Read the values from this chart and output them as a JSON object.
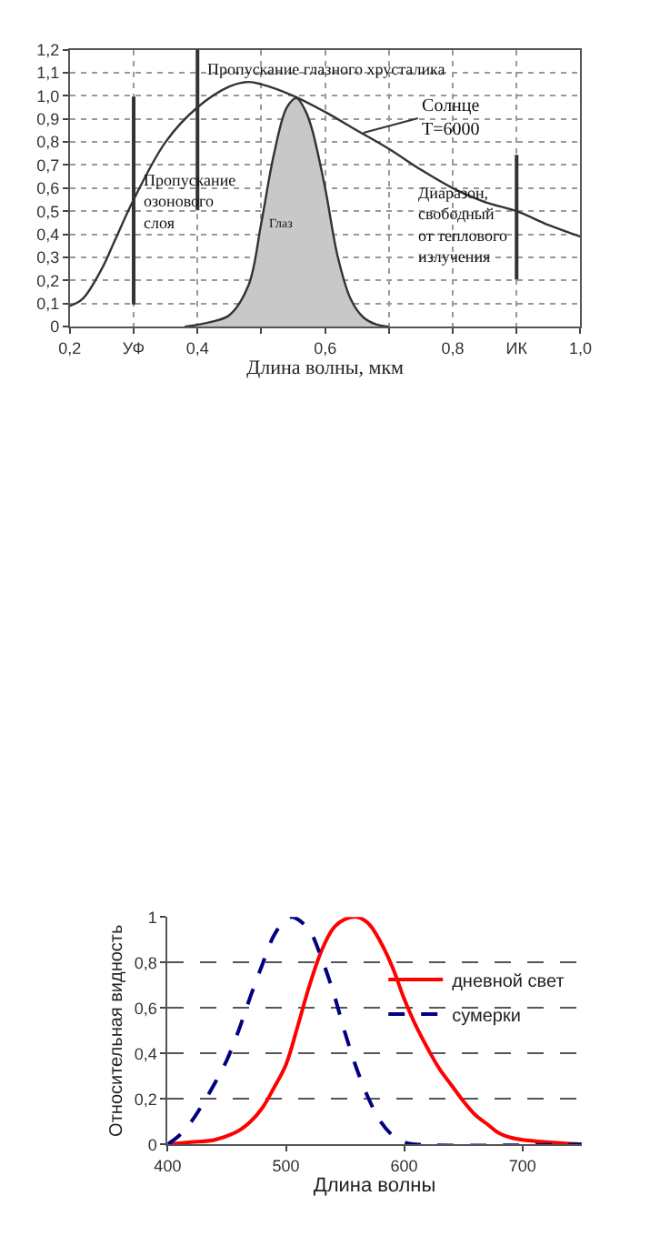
{
  "chart_data": [
    {
      "type": "line",
      "xlabel": "Длина волны, мкм",
      "xlim": [
        0.2,
        1.0
      ],
      "xticks": [
        {
          "value": 0.2,
          "label": "0,2"
        },
        {
          "value": 0.3,
          "label": "УФ"
        },
        {
          "value": 0.4,
          "label": "0,4"
        },
        {
          "value": 0.5,
          "label": null
        },
        {
          "value": 0.6,
          "label": "0,6"
        },
        {
          "value": 0.7,
          "label": null
        },
        {
          "value": 0.8,
          "label": "0,8"
        },
        {
          "value": 0.9,
          "label": "ИК"
        },
        {
          "value": 1.0,
          "label": "1,0"
        }
      ],
      "ylim": [
        0,
        1.2
      ],
      "yticks": [
        0,
        {
          "value": 0.1,
          "label": "0,1"
        },
        {
          "value": 0.2,
          "label": "0,2"
        },
        {
          "value": 0.3,
          "label": "0,3"
        },
        {
          "value": 0.4,
          "label": "0,4"
        },
        {
          "value": 0.5,
          "label": "0,5"
        },
        {
          "value": 0.6,
          "label": "0,6"
        },
        {
          "value": 0.7,
          "label": "0,7"
        },
        {
          "value": 0.8,
          "label": "0,8"
        },
        {
          "value": 0.9,
          "label": "0,9"
        },
        {
          "value": 1.0,
          "label": "1,0"
        },
        {
          "value": 1.1,
          "label": "1,1"
        },
        {
          "value": 1.2,
          "label": "1,2"
        }
      ],
      "grid": true,
      "legend": false,
      "series": [
        {
          "color": "#333333",
          "x": [
            0.2,
            0.22,
            0.25,
            0.27,
            0.3,
            0.35,
            0.4,
            0.45,
            0.48,
            0.5,
            0.55,
            0.6,
            0.65,
            0.7,
            0.75,
            0.8,
            0.85,
            0.9,
            0.95,
            1.0
          ],
          "values": [
            0.09,
            0.12,
            0.25,
            0.37,
            0.55,
            0.8,
            0.95,
            1.04,
            1.06,
            1.05,
            1.0,
            0.93,
            0.85,
            0.77,
            0.68,
            0.6,
            0.54,
            0.5,
            0.44,
            0.39
          ]
        },
        {
          "type": "area",
          "color": "#c8c8c8",
          "x": [
            0.38,
            0.42,
            0.45,
            0.48,
            0.5,
            0.52,
            0.54,
            0.555,
            0.57,
            0.58,
            0.6,
            0.62,
            0.64,
            0.66,
            0.68,
            0.7
          ],
          "values": [
            0,
            0.02,
            0.05,
            0.18,
            0.45,
            0.75,
            0.95,
            0.99,
            0.93,
            0.85,
            0.6,
            0.3,
            0.12,
            0.04,
            0.01,
            0
          ]
        }
      ],
      "ref_lines": [
        {
          "axis": "x",
          "value": 0.4,
          "label": "Пропускание глазного хрусталика",
          "color": "#333333"
        },
        {
          "axis": "x",
          "value": 0.3,
          "label": "Пропускание\nозонового\nслоя",
          "color": "#333333"
        },
        {
          "axis": "x",
          "value": 0.9,
          "label": "Диаразон,\nсвободный\nот теплового\nизлучения",
          "color": "#333333"
        }
      ],
      "annotations": [
        {
          "text": "Солнце\nT=6000",
          "x": 0.66,
          "y": 0.84
        },
        "Глаз"
      ]
    },
    {
      "type": "line",
      "xlabel": "Длина волны",
      "ylabel": "Относительная видность",
      "xlim": [
        400,
        750
      ],
      "xticks": [
        400,
        500,
        600,
        700
      ],
      "ylim": [
        0,
        1
      ],
      "yticks": [
        0,
        {
          "value": 0.2,
          "label": "0,2"
        },
        {
          "value": 0.4,
          "label": "0,4"
        },
        {
          "value": 0.6,
          "label": "0,6"
        },
        {
          "value": 0.8,
          "label": "0,8"
        },
        1
      ],
      "grid": "y",
      "legend": "top right",
      "series": [
        {
          "name": "дневной свет",
          "color": "#ff0000",
          "line_style": "solid",
          "x": [
            400,
            420,
            440,
            460,
            470,
            480,
            490,
            500,
            510,
            520,
            530,
            540,
            550,
            560,
            570,
            580,
            590,
            600,
            610,
            620,
            630,
            640,
            650,
            660,
            670,
            680,
            690,
            700,
            720,
            750
          ],
          "values": [
            0,
            0.01,
            0.02,
            0.06,
            0.1,
            0.16,
            0.25,
            0.35,
            0.52,
            0.7,
            0.85,
            0.95,
            0.99,
            1.0,
            0.97,
            0.89,
            0.78,
            0.64,
            0.52,
            0.42,
            0.33,
            0.26,
            0.19,
            0.13,
            0.09,
            0.05,
            0.03,
            0.02,
            0.01,
            0
          ]
        },
        {
          "name": "сумерки",
          "color": "#000080",
          "line_style": "dashed",
          "x": [
            400,
            410,
            420,
            430,
            440,
            450,
            460,
            470,
            480,
            490,
            500,
            505,
            510,
            520,
            530,
            540,
            550,
            560,
            570,
            580,
            590,
            600,
            610,
            750
          ],
          "values": [
            0,
            0.04,
            0.1,
            0.18,
            0.27,
            0.37,
            0.5,
            0.65,
            0.79,
            0.92,
            0.99,
            1.0,
            0.99,
            0.94,
            0.82,
            0.67,
            0.49,
            0.33,
            0.2,
            0.1,
            0.04,
            0.01,
            0,
            0
          ]
        }
      ]
    }
  ]
}
